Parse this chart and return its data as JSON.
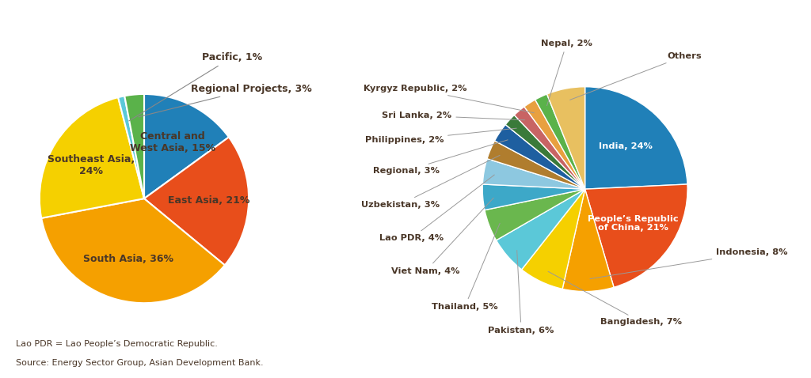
{
  "pie1": {
    "values": [
      15,
      21,
      36,
      24,
      1,
      3
    ],
    "colors": [
      "#2080b8",
      "#e84e1b",
      "#f5a000",
      "#f5d000",
      "#5bc8d8",
      "#5ab24a"
    ],
    "startangle": 90
  },
  "pie2": {
    "values": [
      24,
      21,
      8,
      7,
      6,
      5,
      4,
      4,
      3,
      3,
      2,
      2,
      2,
      2,
      6
    ],
    "colors": [
      "#2080b8",
      "#e84e1b",
      "#f5a000",
      "#f5d000",
      "#5bc8d8",
      "#6ab74e",
      "#3da8c8",
      "#8dc8e0",
      "#b07d2e",
      "#1e5fa0",
      "#3a7a3a",
      "#c86464",
      "#e8a040",
      "#5ab24a",
      "#e8c060"
    ],
    "startangle": 90
  },
  "text_color": "#4a3728",
  "bg_color": "#ffffff",
  "footnote1": "Lao PDR = Lao People’s Democratic Republic.",
  "footnote2": "Source: Energy Sector Group, Asian Development Bank."
}
